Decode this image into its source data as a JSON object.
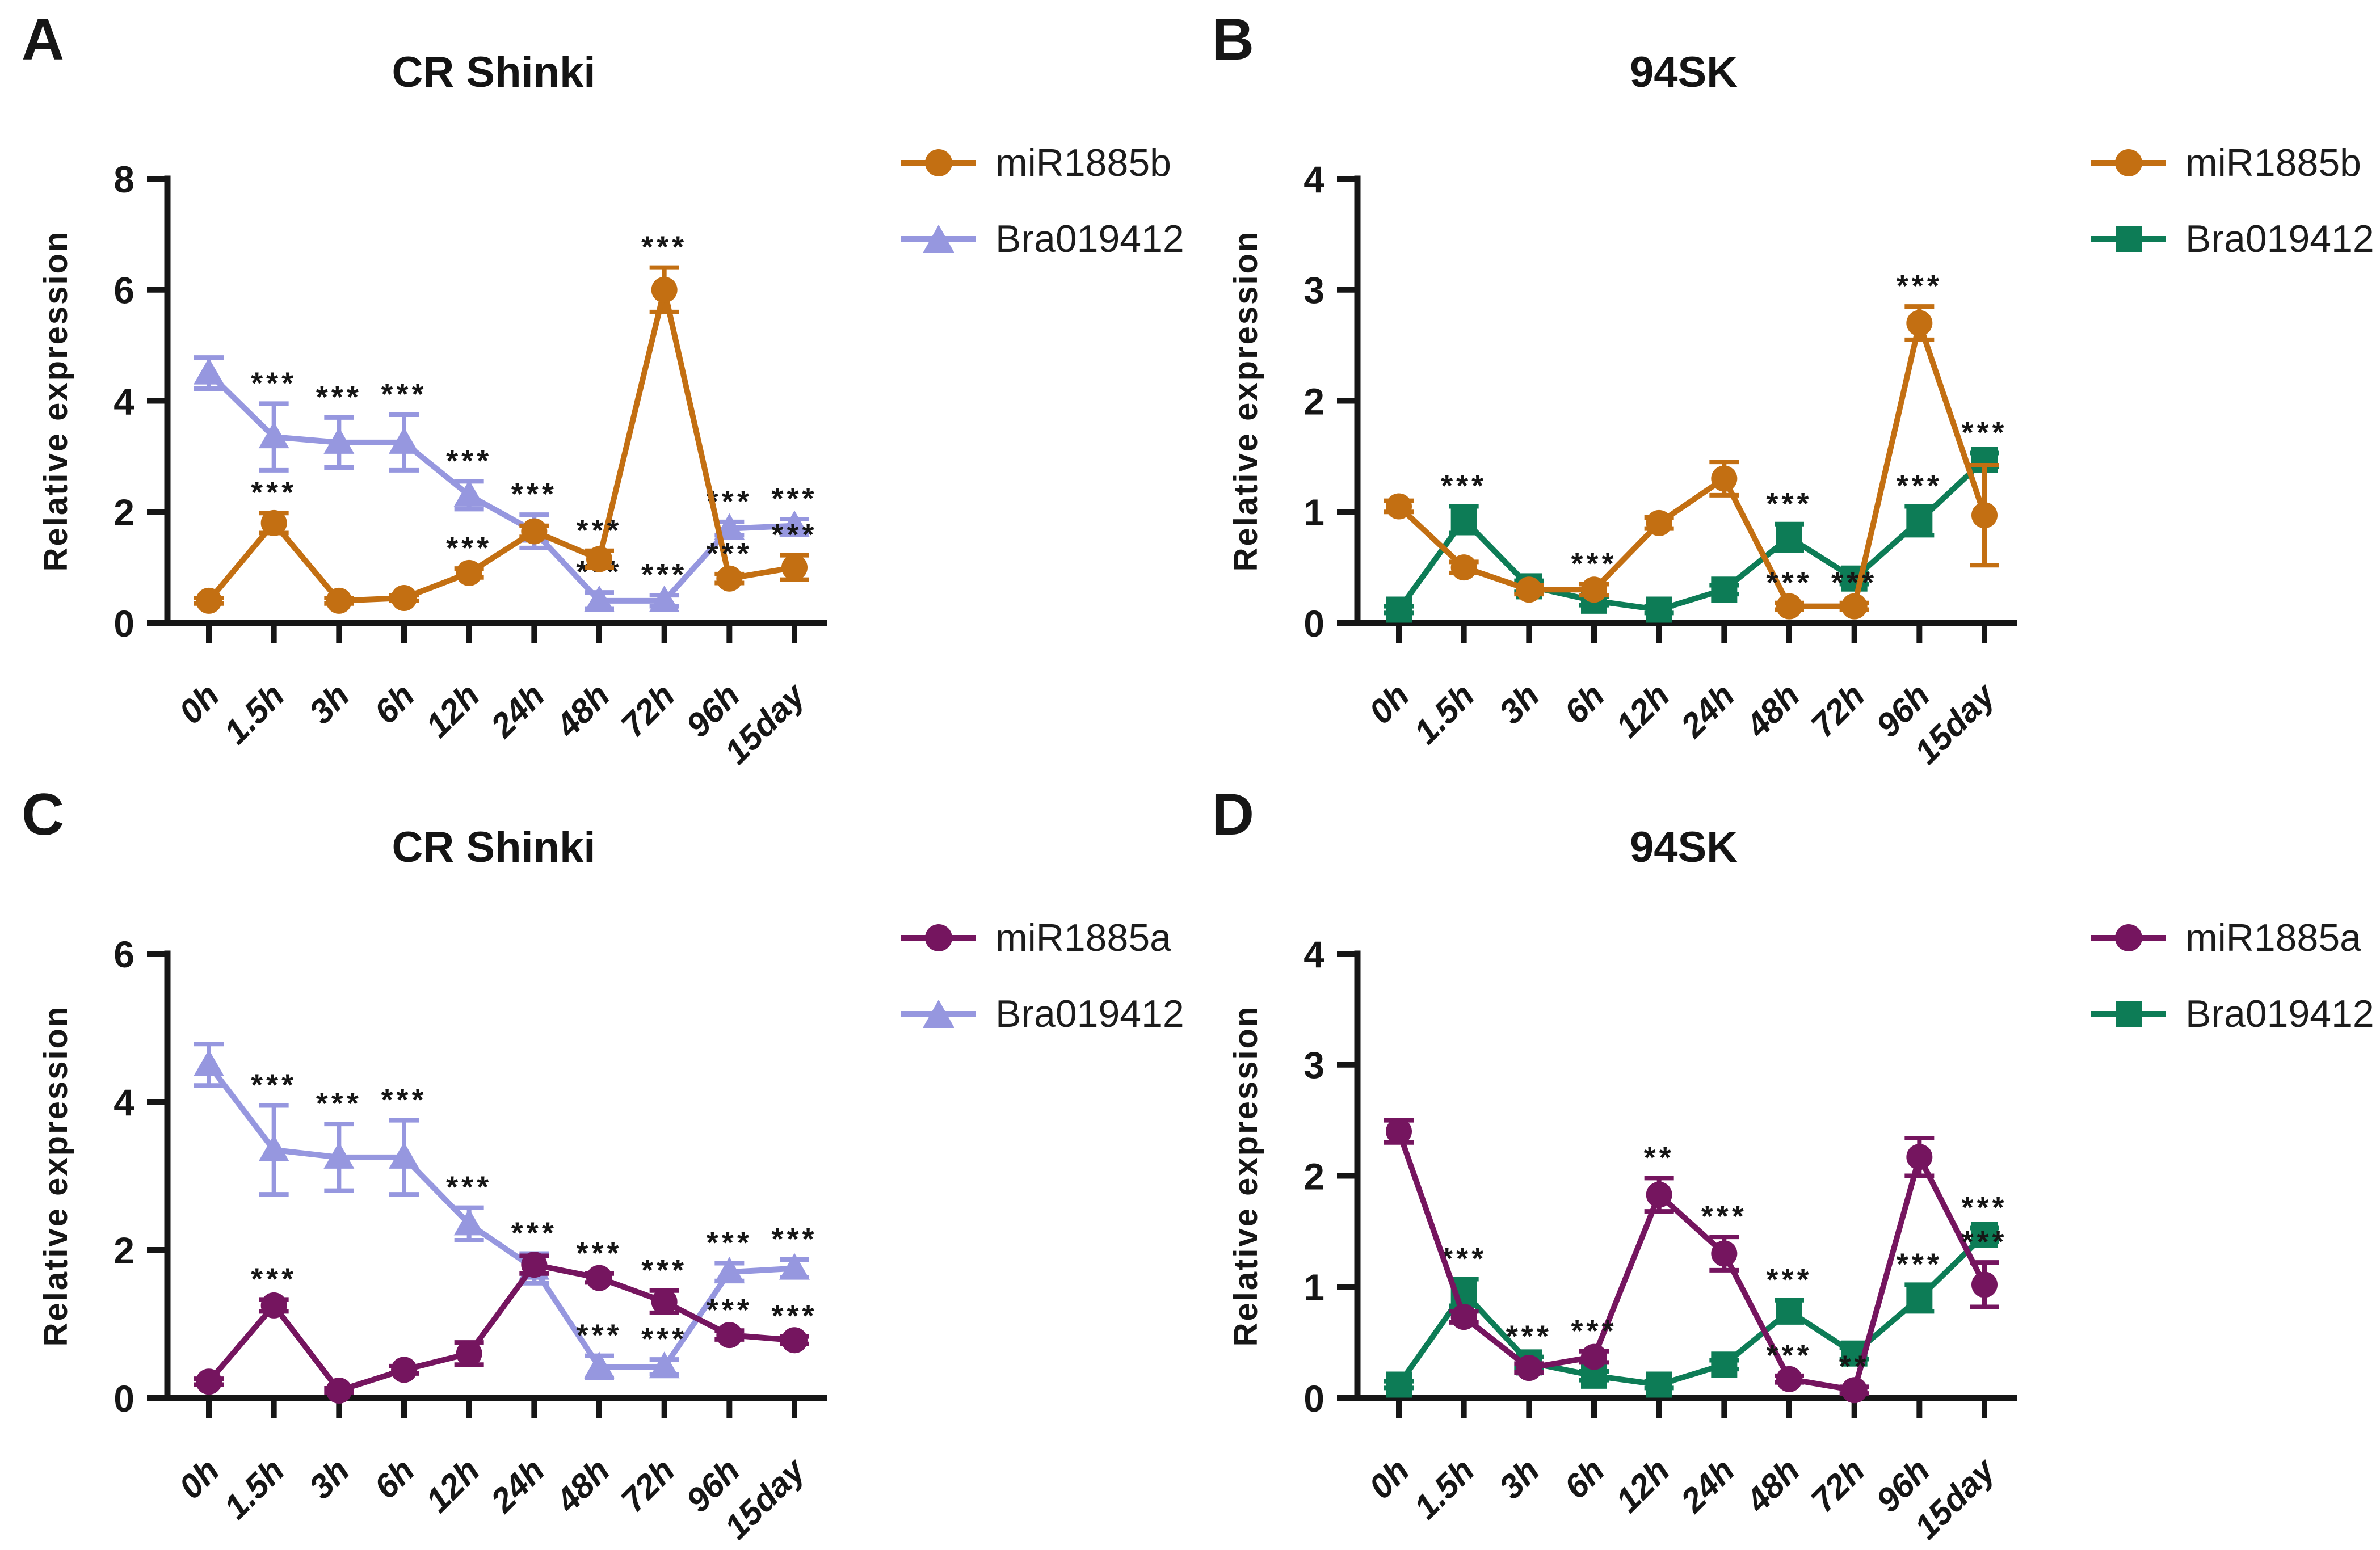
{
  "figure": {
    "background": "#ffffff",
    "axis_color": "#161616",
    "ylabel": "Relative expression"
  },
  "chart_data": [
    {
      "type": "line",
      "panel_letter": "A",
      "title": "CR Shinki",
      "ylabel": "Relative expression",
      "ylim": [
        0,
        8
      ],
      "yticks": [
        0,
        2,
        4,
        6,
        8
      ],
      "grid": false,
      "legend_position": "right",
      "categories": [
        "0h",
        "1.5h",
        "3h",
        "6h",
        "12h",
        "24h",
        "48h",
        "72h",
        "96h",
        "15day"
      ],
      "series": [
        {
          "name": "miR1885b",
          "color": "#C36F12",
          "marker": "circle",
          "values": [
            0.4,
            1.8,
            0.4,
            0.45,
            0.9,
            1.65,
            1.15,
            6.0,
            0.8,
            1.0
          ],
          "errors": [
            0.05,
            0.18,
            0.05,
            0.05,
            0.08,
            0.1,
            0.15,
            0.4,
            0.08,
            0.22
          ],
          "sig": [
            "",
            "***",
            "",
            "",
            "***",
            "",
            "***",
            "***",
            "***",
            "***"
          ]
        },
        {
          "name": "Bra019412",
          "color": "#9697DF",
          "marker": "triangle",
          "values": [
            4.5,
            3.35,
            3.25,
            3.25,
            2.3,
            1.65,
            0.4,
            0.4,
            1.7,
            1.75
          ],
          "errors": [
            0.28,
            0.6,
            0.45,
            0.5,
            0.25,
            0.3,
            0.15,
            0.1,
            0.12,
            0.12
          ],
          "sig": [
            "",
            "***",
            "***",
            "***",
            "***",
            "***",
            "***",
            "***",
            "***",
            "***"
          ]
        }
      ]
    },
    {
      "type": "line",
      "panel_letter": "B",
      "title": "94SK",
      "ylabel": "Relative expression",
      "ylim": [
        0,
        4
      ],
      "yticks": [
        0,
        1,
        2,
        3,
        4
      ],
      "grid": false,
      "legend_position": "right",
      "categories": [
        "0h",
        "1.5h",
        "3h",
        "6h",
        "12h",
        "24h",
        "48h",
        "72h",
        "96h",
        "15day"
      ],
      "series": [
        {
          "name": "miR1885b",
          "color": "#C36F12",
          "marker": "circle",
          "values": [
            1.05,
            0.5,
            0.3,
            0.3,
            0.9,
            1.3,
            0.15,
            0.15,
            2.7,
            0.97
          ],
          "errors": [
            0.05,
            0.05,
            0.04,
            0.05,
            0.05,
            0.15,
            0.03,
            0.03,
            0.15,
            0.45
          ],
          "sig": [
            "",
            "",
            "",
            "***",
            "",
            "",
            "***",
            "***",
            "***",
            ""
          ]
        },
        {
          "name": "Bra019412",
          "color": "#0D7C56",
          "marker": "square",
          "values": [
            0.12,
            0.93,
            0.33,
            0.2,
            0.12,
            0.3,
            0.77,
            0.4,
            0.92,
            1.47
          ],
          "errors": [
            0.03,
            0.12,
            0.05,
            0.04,
            0.03,
            0.04,
            0.12,
            0.05,
            0.13,
            0.06
          ],
          "sig": [
            "",
            "***",
            "",
            "",
            "",
            "",
            "***",
            "",
            "***",
            "***"
          ]
        }
      ]
    },
    {
      "type": "line",
      "panel_letter": "C",
      "title": "CR Shinki",
      "ylabel": "Relative expression",
      "ylim": [
        0,
        6
      ],
      "yticks": [
        0,
        2,
        4,
        6
      ],
      "grid": false,
      "legend_position": "right",
      "categories": [
        "0h",
        "1.5h",
        "3h",
        "6h",
        "12h",
        "24h",
        "48h",
        "72h",
        "96h",
        "15day"
      ],
      "series": [
        {
          "name": "miR1885a",
          "color": "#75155F",
          "marker": "circle",
          "values": [
            0.22,
            1.25,
            0.1,
            0.38,
            0.6,
            1.8,
            1.62,
            1.3,
            0.85,
            0.78
          ],
          "errors": [
            0.04,
            0.08,
            0.03,
            0.05,
            0.15,
            0.12,
            0.06,
            0.15,
            0.06,
            0.05
          ],
          "sig": [
            "",
            "***",
            "",
            "",
            "",
            "",
            "***",
            "***",
            "***",
            "***"
          ]
        },
        {
          "name": "Bra019412",
          "color": "#9697DF",
          "marker": "triangle",
          "values": [
            4.5,
            3.35,
            3.25,
            3.25,
            2.35,
            1.75,
            0.42,
            0.42,
            1.7,
            1.75
          ],
          "errors": [
            0.28,
            0.6,
            0.45,
            0.5,
            0.22,
            0.2,
            0.15,
            0.1,
            0.12,
            0.12
          ],
          "sig": [
            "",
            "***",
            "***",
            "***",
            "***",
            "***",
            "***",
            "***",
            "***",
            "***"
          ]
        }
      ]
    },
    {
      "type": "line",
      "panel_letter": "D",
      "title": "94SK",
      "ylabel": "Relative expression",
      "ylim": [
        0,
        4
      ],
      "yticks": [
        0,
        1,
        2,
        3,
        4
      ],
      "grid": false,
      "legend_position": "right",
      "categories": [
        "0h",
        "1.5h",
        "3h",
        "6h",
        "12h",
        "24h",
        "48h",
        "72h",
        "96h",
        "15day"
      ],
      "series": [
        {
          "name": "miR1885a",
          "color": "#75155F",
          "marker": "circle",
          "values": [
            2.4,
            0.73,
            0.27,
            0.37,
            1.83,
            1.3,
            0.17,
            0.07,
            2.17,
            1.02
          ],
          "errors": [
            0.1,
            0.05,
            0.04,
            0.05,
            0.15,
            0.15,
            0.03,
            0.03,
            0.17,
            0.2
          ],
          "sig": [
            "",
            "",
            "",
            "***",
            "**",
            "***",
            "***",
            "**",
            "",
            "***"
          ]
        },
        {
          "name": "Bra019412",
          "color": "#0D7C56",
          "marker": "square",
          "values": [
            0.12,
            0.95,
            0.32,
            0.2,
            0.12,
            0.3,
            0.78,
            0.4,
            0.9,
            1.47
          ],
          "errors": [
            0.03,
            0.12,
            0.05,
            0.04,
            0.03,
            0.04,
            0.1,
            0.05,
            0.12,
            0.06
          ],
          "sig": [
            "",
            "***",
            "***",
            "",
            "",
            "",
            "***",
            "",
            "***",
            "***"
          ]
        }
      ]
    }
  ]
}
